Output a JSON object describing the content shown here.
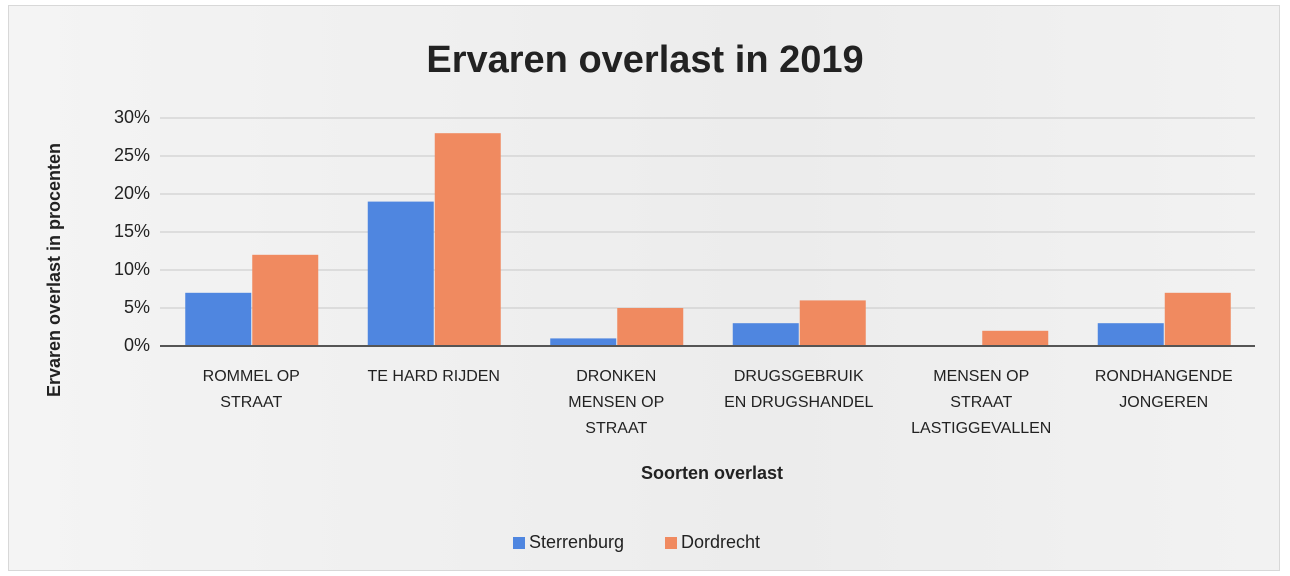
{
  "chart_data": {
    "type": "bar",
    "title": "Ervaren overlast in 2019",
    "x_label": "Soorten overlast",
    "y_label": "Ervaren overlast in procenten",
    "categories": [
      "ROMMEL OP STRAAT",
      "TE HARD RIJDEN",
      "DRONKEN MENSEN OP STRAAT",
      "DRUGSGEBRUIK EN DRUGSHANDEL",
      "MENSEN OP STRAAT LASTIGGEVALLEN",
      "RONDHANGENDE JONGEREN"
    ],
    "series": [
      {
        "name": "Sterrenburg",
        "color": "#4f86e0",
        "values": [
          7,
          19,
          1,
          3,
          0,
          3
        ]
      },
      {
        "name": "Dordrecht",
        "color": "#f08a60",
        "values": [
          12,
          28,
          5,
          6,
          2,
          7
        ]
      }
    ],
    "ylim": [
      0,
      30
    ],
    "yticks": [
      {
        "value": 0,
        "label": "0%"
      },
      {
        "value": 5,
        "label": "5%"
      },
      {
        "value": 10,
        "label": "10%"
      },
      {
        "value": 15,
        "label": "15%"
      },
      {
        "value": 20,
        "label": "20%"
      },
      {
        "value": 25,
        "label": "25%"
      },
      {
        "value": 30,
        "label": "30%"
      }
    ],
    "grid": true,
    "legend": "bottom"
  }
}
